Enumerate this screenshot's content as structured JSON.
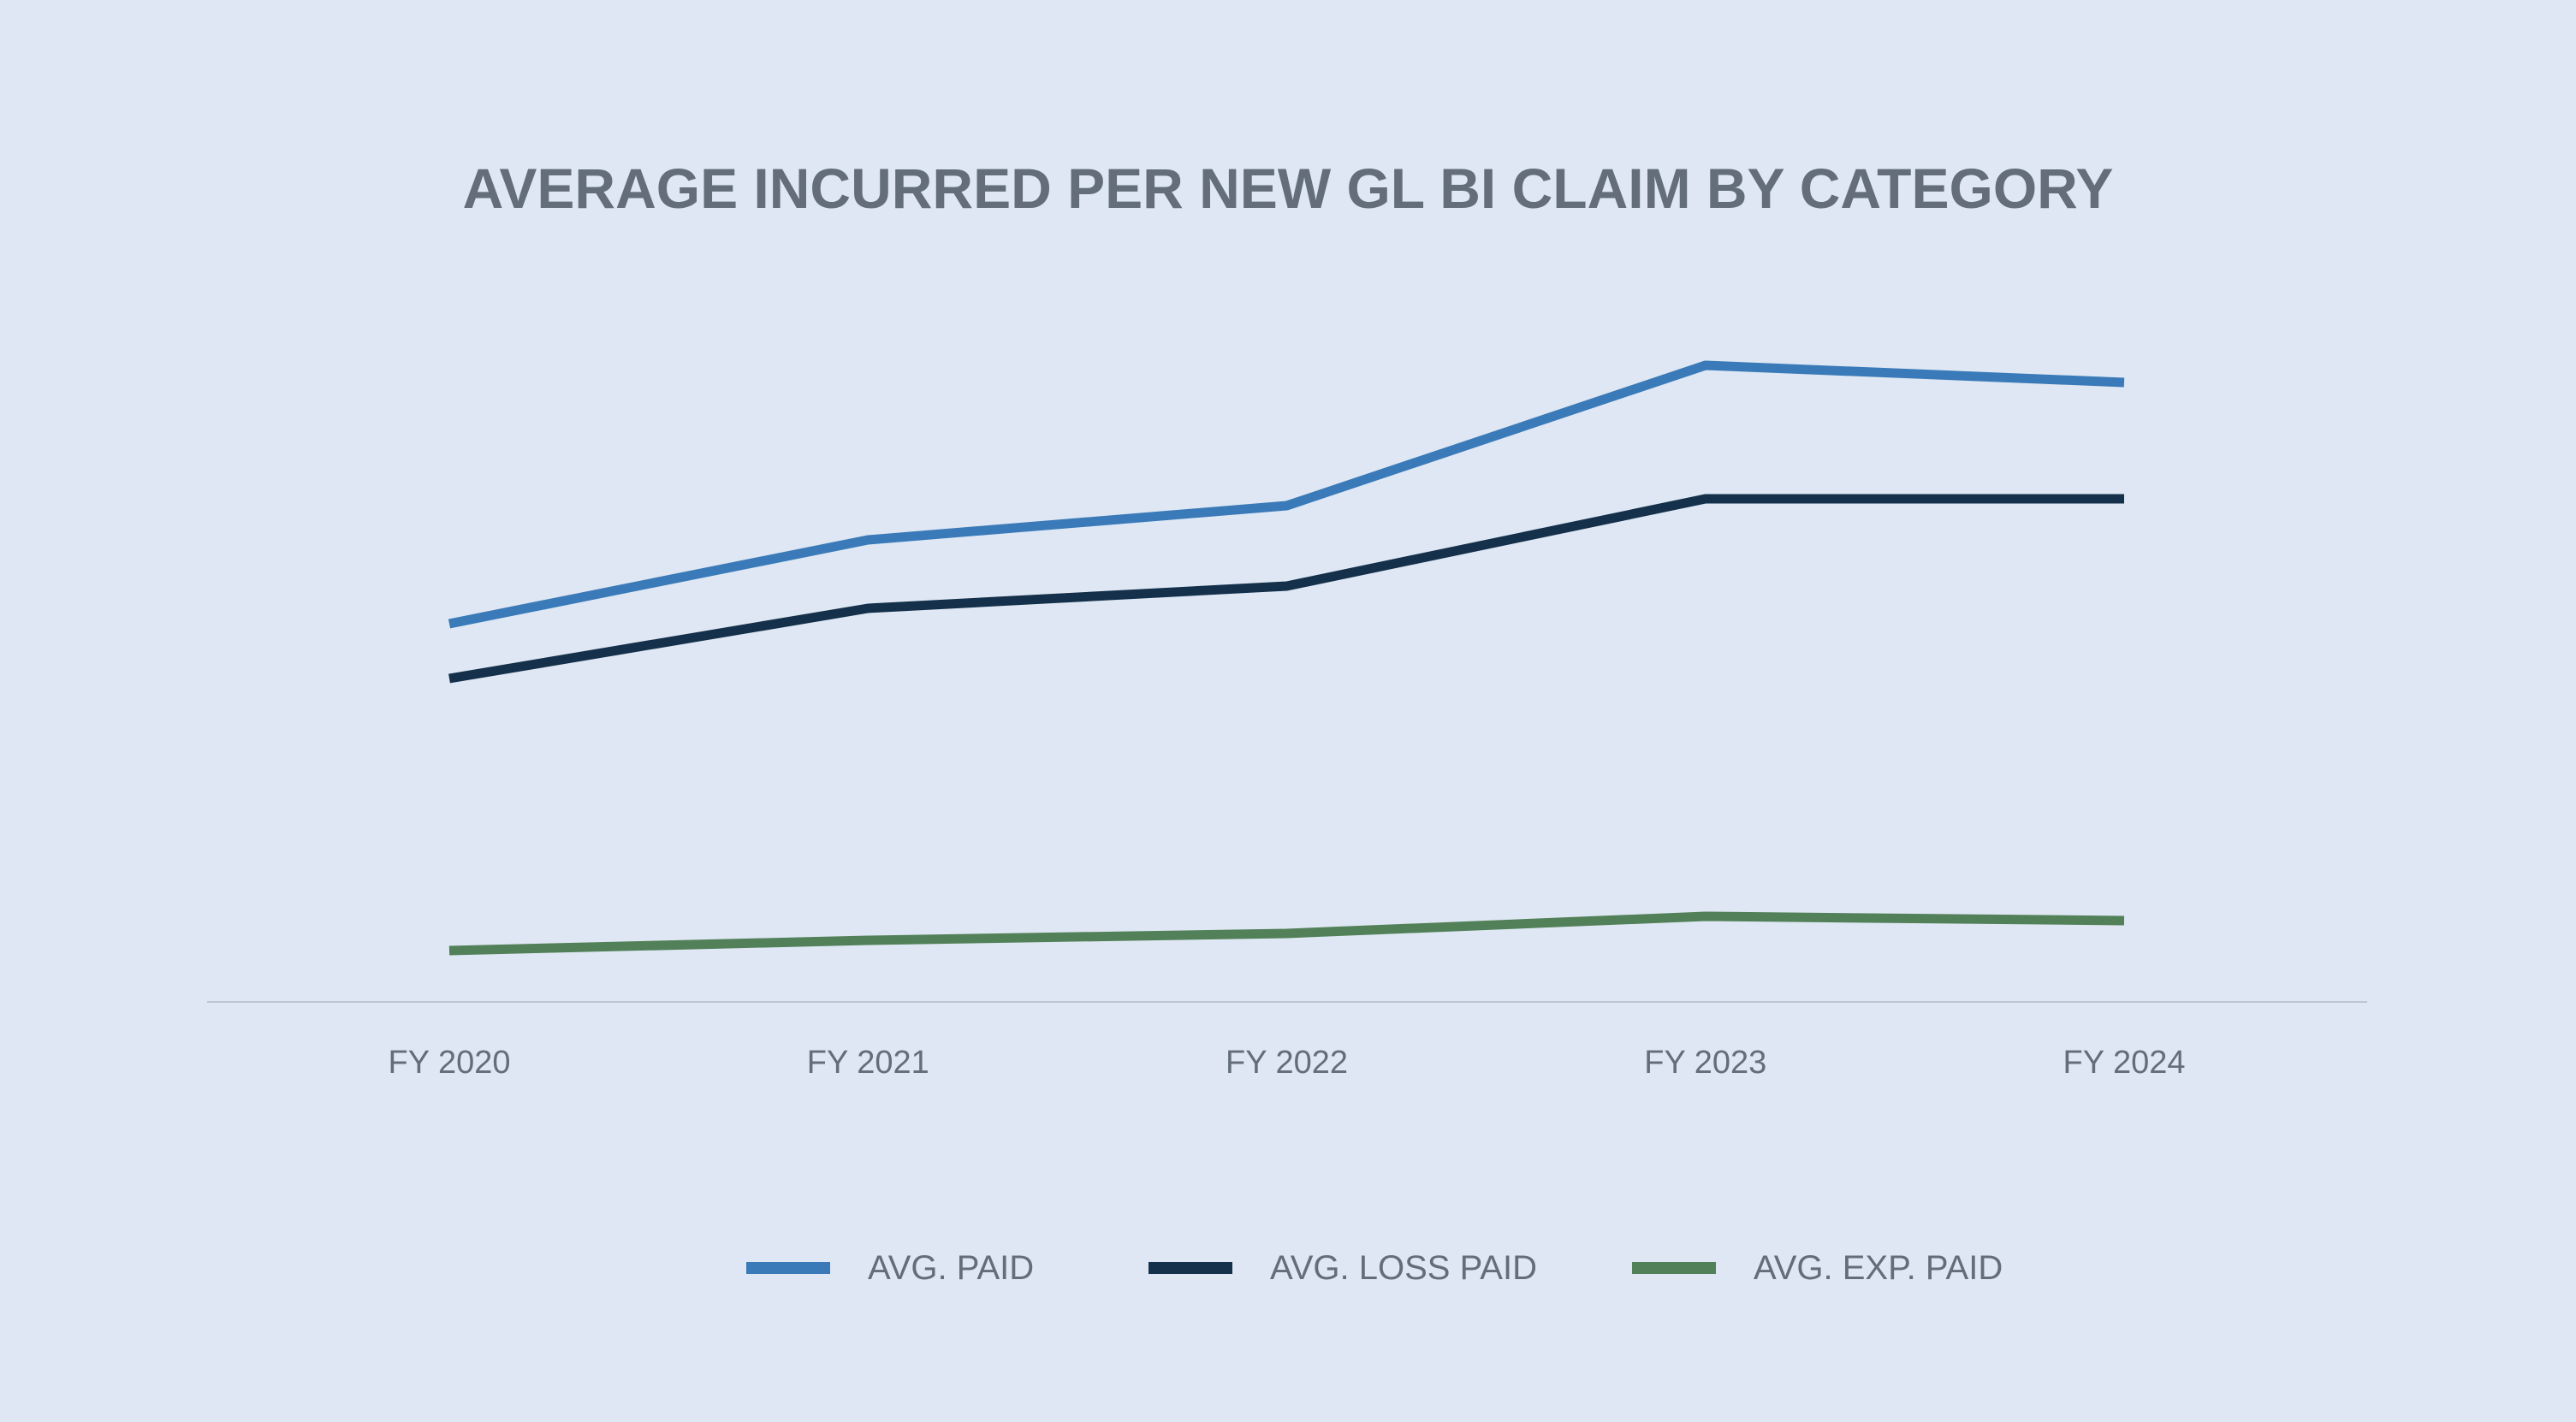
{
  "chart_data": {
    "type": "line",
    "title": "AVERAGE INCURRED PER NEW GL BI CLAIM BY CATEGORY",
    "xlabel": "",
    "ylabel": "",
    "categories": [
      "FY 2020",
      "FY 2021",
      "FY 2022",
      "FY 2023",
      "FY 2024"
    ],
    "series": [
      {
        "name": "AVG. PAID",
        "color": "#3a7ab8",
        "values": [
          44200,
          54000,
          58000,
          74400,
          72400
        ]
      },
      {
        "name": "AVG. LOSS PAID",
        "color": "#14304a",
        "values": [
          37800,
          46000,
          48600,
          58800,
          58800
        ]
      },
      {
        "name": "AVG. EXP. PAID",
        "color": "#528058",
        "values": [
          6000,
          7200,
          8000,
          10000,
          9500
        ]
      }
    ],
    "ylim": [
      0,
      100000
    ],
    "y_axis_visible": false,
    "grid": false,
    "legend_position": "bottom"
  }
}
